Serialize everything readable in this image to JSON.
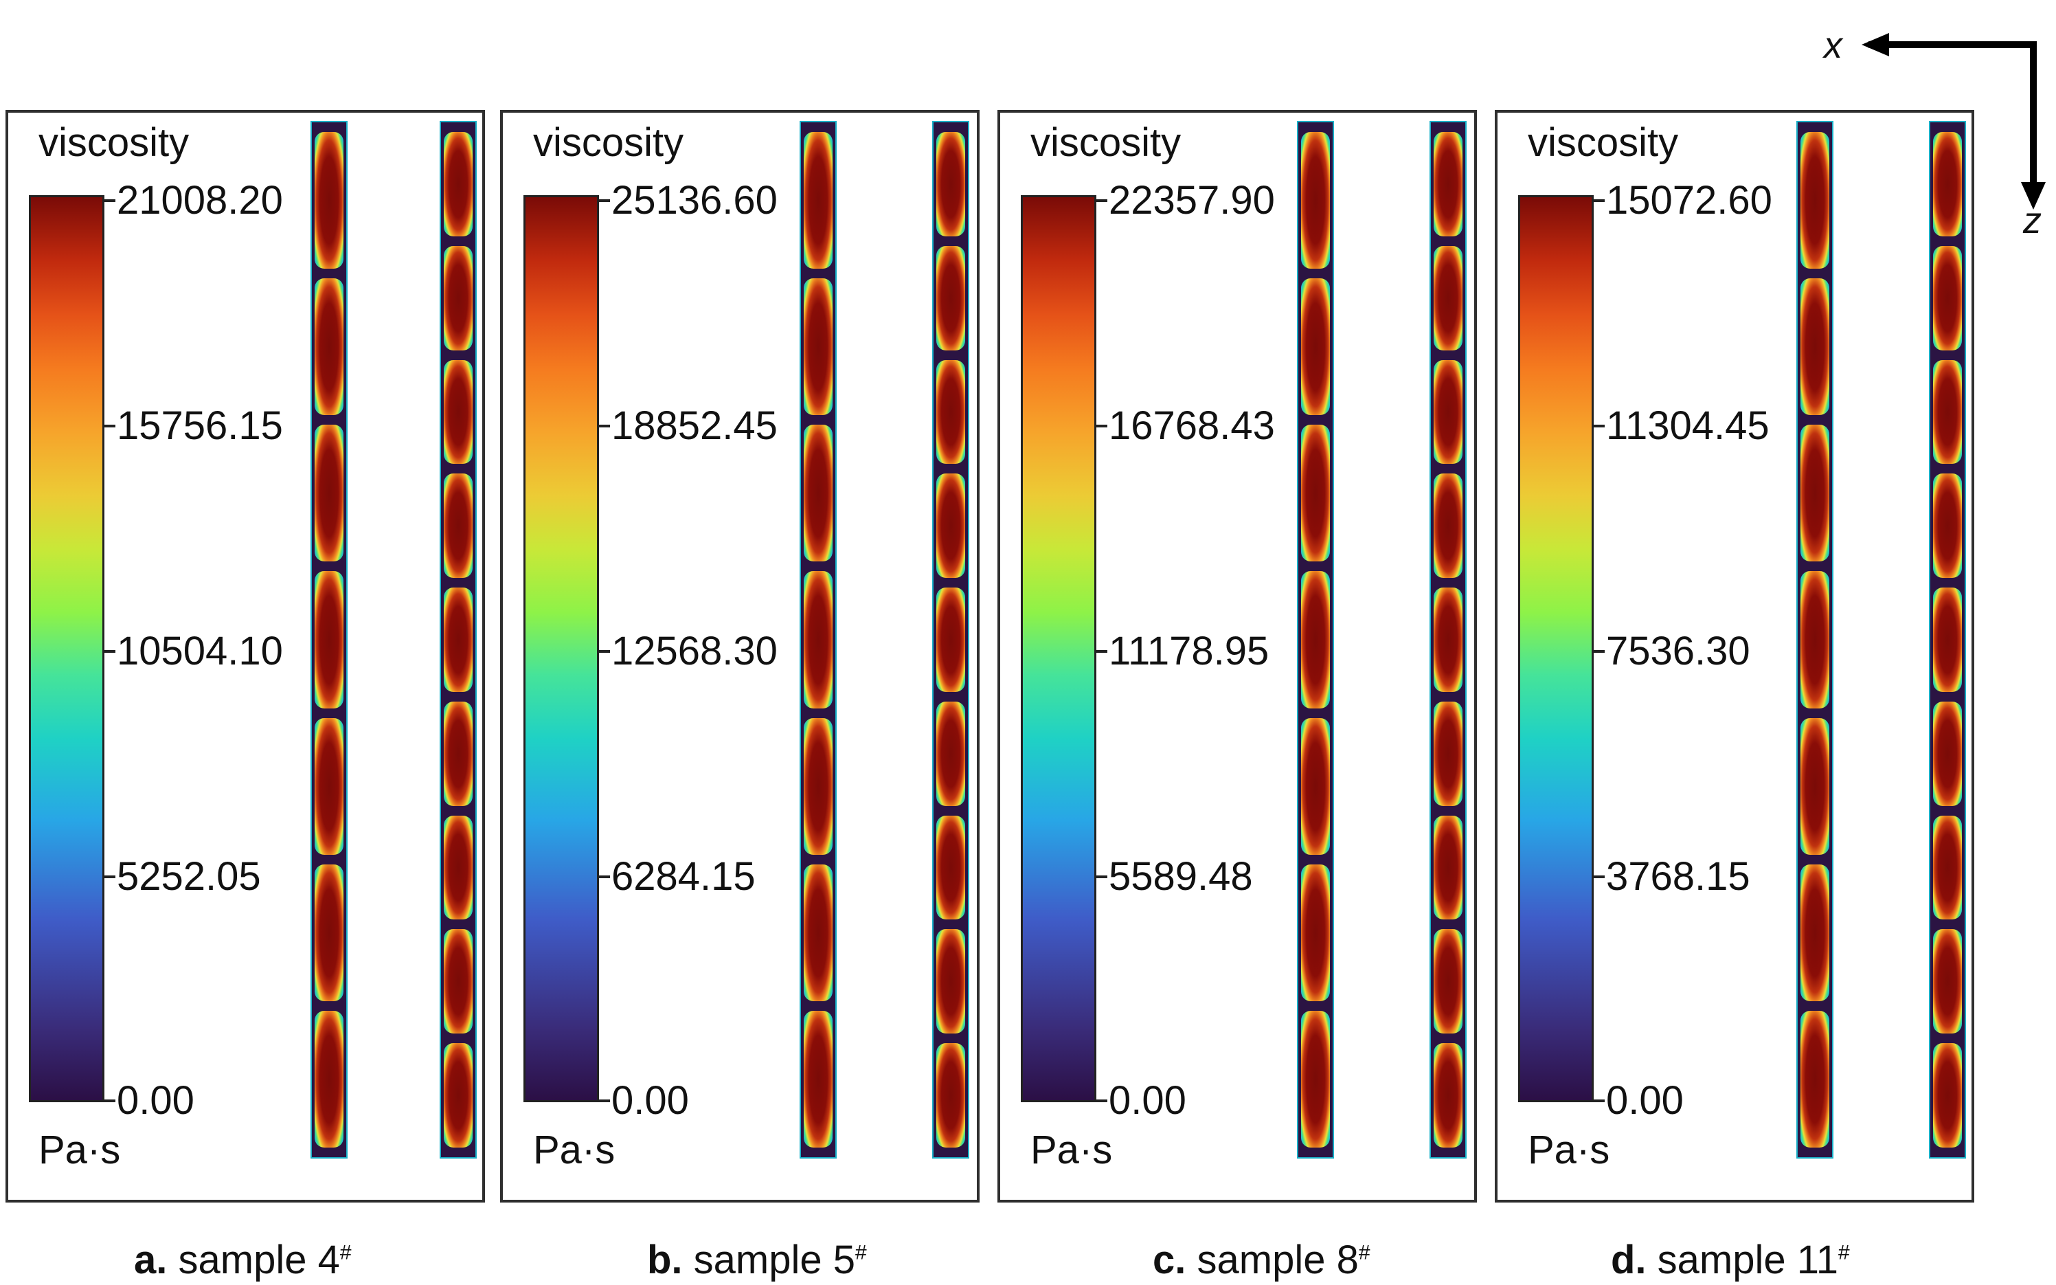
{
  "axes": {
    "x_label": "x",
    "z_label": "z"
  },
  "panels": [
    {
      "title": "viscosity",
      "unit": "Pa·s",
      "ticks": [
        "21008.20",
        "15756.15",
        "10504.10",
        "5252.05",
        "0.00"
      ],
      "caption_letter": "a.",
      "caption_text": "sample 4",
      "caption_sup": "#"
    },
    {
      "title": "viscosity",
      "unit": "Pa·s",
      "ticks": [
        "25136.60",
        "18852.45",
        "12568.30",
        "6284.15",
        "0.00"
      ],
      "caption_letter": "b.",
      "caption_text": "sample 5",
      "caption_sup": "#"
    },
    {
      "title": "viscosity",
      "unit": "Pa·s",
      "ticks": [
        "22357.90",
        "16768.43",
        "11178.95",
        "5589.48",
        "0.00"
      ],
      "caption_letter": "c.",
      "caption_text": "sample 8",
      "caption_sup": "#"
    },
    {
      "title": "viscosity",
      "unit": "Pa·s",
      "ticks": [
        "15072.60",
        "11304.45",
        "7536.30",
        "3768.15",
        "0.00"
      ],
      "caption_letter": "d.",
      "caption_text": "sample 11",
      "caption_sup": "#"
    }
  ],
  "colors": {
    "colormap_low": "#2b0f45",
    "colormap_high": "#7a0b07",
    "background": "#2b1443"
  }
}
